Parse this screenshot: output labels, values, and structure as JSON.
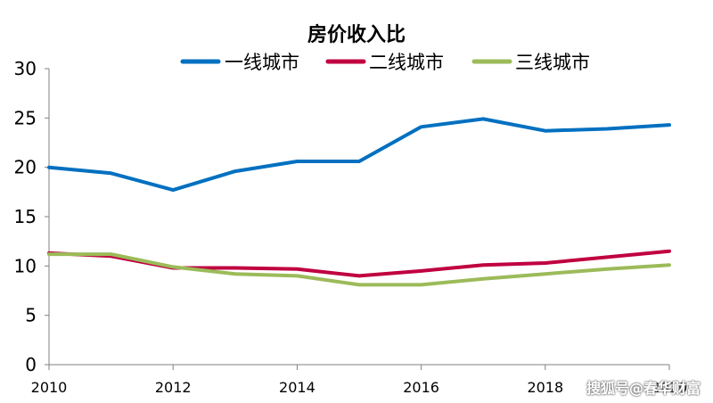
{
  "chart_data": {
    "type": "line",
    "title": "房价收入比",
    "xlabel": "",
    "ylabel": "",
    "x": [
      2010,
      2011,
      2012,
      2013,
      2014,
      2015,
      2016,
      2017,
      2018,
      2019,
      2020
    ],
    "xticks": [
      "2010",
      "2012",
      "2014",
      "2016",
      "2018",
      "2020"
    ],
    "yticks": [
      "0",
      "5",
      "10",
      "15",
      "20",
      "25",
      "30"
    ],
    "ylim": [
      0,
      30
    ],
    "xlim": [
      2010,
      2020
    ],
    "grid": false,
    "legend_position": "top",
    "series": [
      {
        "name": "一线城市",
        "color": "#0070C0",
        "values": [
          20.0,
          19.4,
          17.7,
          19.6,
          20.6,
          20.6,
          24.1,
          24.9,
          23.7,
          23.9,
          24.3
        ]
      },
      {
        "name": "二线城市",
        "color": "#C00040",
        "values": [
          11.3,
          11.0,
          9.8,
          9.8,
          9.7,
          9.0,
          9.5,
          10.1,
          10.3,
          10.9,
          11.5
        ]
      },
      {
        "name": "三线城市",
        "color": "#9BBB59",
        "values": [
          11.2,
          11.2,
          9.9,
          9.2,
          9.0,
          8.1,
          8.1,
          8.7,
          9.2,
          9.7,
          10.1
        ]
      }
    ]
  },
  "watermark": "搜狐号@春华财富"
}
